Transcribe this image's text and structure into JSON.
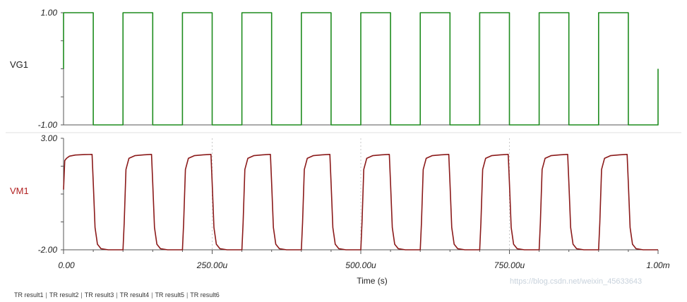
{
  "chart_data": [
    {
      "type": "line",
      "signal": "VG1",
      "ylabel": "VG1",
      "ylim": [
        -1.0,
        1.0
      ],
      "y_ticks": [
        "1.00",
        "-1.00"
      ],
      "color": "#1e8c1e",
      "series": [
        {
          "name": "VG1",
          "x": [
            0,
            0,
            50,
            50,
            100,
            100,
            150,
            150,
            200,
            200,
            250,
            250,
            300,
            300,
            350,
            350,
            400,
            400,
            450,
            450,
            500,
            500,
            550,
            550,
            600,
            600,
            650,
            650,
            700,
            700,
            750,
            750,
            800,
            800,
            850,
            850,
            900,
            900,
            950,
            950,
            1000,
            1000
          ],
          "y": [
            0,
            1,
            1,
            -1,
            -1,
            1,
            1,
            -1,
            -1,
            1,
            1,
            -1,
            -1,
            1,
            1,
            -1,
            -1,
            1,
            1,
            -1,
            -1,
            1,
            1,
            -1,
            -1,
            1,
            1,
            -1,
            -1,
            1,
            1,
            -1,
            -1,
            1,
            1,
            -1,
            -1,
            1,
            1,
            -1,
            -1,
            0
          ]
        }
      ]
    },
    {
      "type": "line",
      "signal": "VM1",
      "ylabel": "VM1",
      "ylim": [
        -2.0,
        3.0
      ],
      "y_ticks": [
        "3.00",
        "-2.00"
      ],
      "color": "#8b1a1a",
      "x_unit": "us",
      "series": [
        {
          "name": "VM1",
          "x": [
            0,
            2,
            5,
            10,
            20,
            35,
            48,
            50,
            53,
            57,
            63,
            75,
            90,
            100,
            102,
            105,
            110,
            120,
            135,
            148,
            150,
            153,
            157,
            163,
            175,
            190,
            200,
            202,
            205,
            210,
            220,
            235,
            248,
            250,
            253,
            257,
            263,
            275,
            290,
            300,
            302,
            305,
            310,
            320,
            335,
            348,
            350,
            353,
            357,
            363,
            375,
            390,
            400,
            402,
            405,
            410,
            420,
            435,
            448,
            450,
            453,
            457,
            463,
            475,
            490,
            500,
            502,
            505,
            510,
            520,
            535,
            548,
            550,
            553,
            557,
            563,
            575,
            590,
            600,
            602,
            605,
            610,
            620,
            635,
            648,
            650,
            653,
            657,
            663,
            675,
            690,
            700,
            702,
            705,
            710,
            720,
            735,
            748,
            750,
            753,
            757,
            763,
            775,
            790,
            800,
            802,
            805,
            810,
            820,
            835,
            848,
            850,
            853,
            857,
            863,
            875,
            890,
            900,
            902,
            905,
            910,
            920,
            935,
            948,
            950,
            953,
            957,
            963,
            975,
            990,
            1000
          ],
          "y": [
            0.7,
            2.0,
            2.1,
            2.2,
            2.25,
            2.27,
            2.28,
            1.0,
            -1.0,
            -1.75,
            -1.95,
            -2.0,
            -2.0,
            -2.0,
            -0.8,
            1.6,
            2.1,
            2.22,
            2.26,
            2.28,
            1.0,
            -1.0,
            -1.75,
            -1.95,
            -2.0,
            -2.0,
            -2.0,
            -0.8,
            1.6,
            2.1,
            2.22,
            2.26,
            2.28,
            1.0,
            -1.0,
            -1.75,
            -1.95,
            -2.0,
            -2.0,
            -2.0,
            -0.8,
            1.6,
            2.1,
            2.22,
            2.26,
            2.28,
            1.0,
            -1.0,
            -1.75,
            -1.95,
            -2.0,
            -2.0,
            -2.0,
            -0.8,
            1.6,
            2.1,
            2.22,
            2.26,
            2.28,
            1.0,
            -1.0,
            -1.75,
            -1.95,
            -2.0,
            -2.0,
            -2.0,
            -0.8,
            1.6,
            2.1,
            2.22,
            2.26,
            2.28,
            1.0,
            -1.0,
            -1.75,
            -1.95,
            -2.0,
            -2.0,
            -2.0,
            -0.8,
            1.6,
            2.1,
            2.22,
            2.26,
            2.28,
            1.0,
            -1.0,
            -1.75,
            -1.95,
            -2.0,
            -2.0,
            -2.0,
            -0.8,
            1.6,
            2.1,
            2.22,
            2.26,
            2.28,
            1.0,
            -1.0,
            -1.75,
            -1.95,
            -2.0,
            -2.0,
            -2.0,
            -0.8,
            1.6,
            2.1,
            2.22,
            2.26,
            2.28,
            1.0,
            -1.0,
            -1.75,
            -1.95,
            -2.0,
            -2.0,
            -2.0,
            -0.8,
            1.6,
            2.1,
            2.22,
            2.26,
            2.28,
            1.0,
            -1.0,
            -1.75,
            -1.95,
            -2.0,
            -2.0,
            -2.0
          ]
        }
      ]
    }
  ],
  "x_axis": {
    "xlabel": "Time (s)",
    "xlim": [
      0,
      1000
    ],
    "tick_values": [
      0,
      250,
      500,
      750,
      1000
    ],
    "tick_labels": [
      "0.00",
      "250.00u",
      "500.00u",
      "750.00u",
      "1.00m"
    ]
  },
  "tabs": [
    "TR result1",
    "TR result2",
    "TR result3",
    "TR result4",
    "TR result5",
    "TR result6"
  ],
  "watermark": "https://blog.csdn.net/weixin_45633643",
  "colors": {
    "vg1": "#1e8c1e",
    "vm1": "#8b1a1a",
    "axis": "#555555",
    "gridline": "#c8c8c8"
  }
}
